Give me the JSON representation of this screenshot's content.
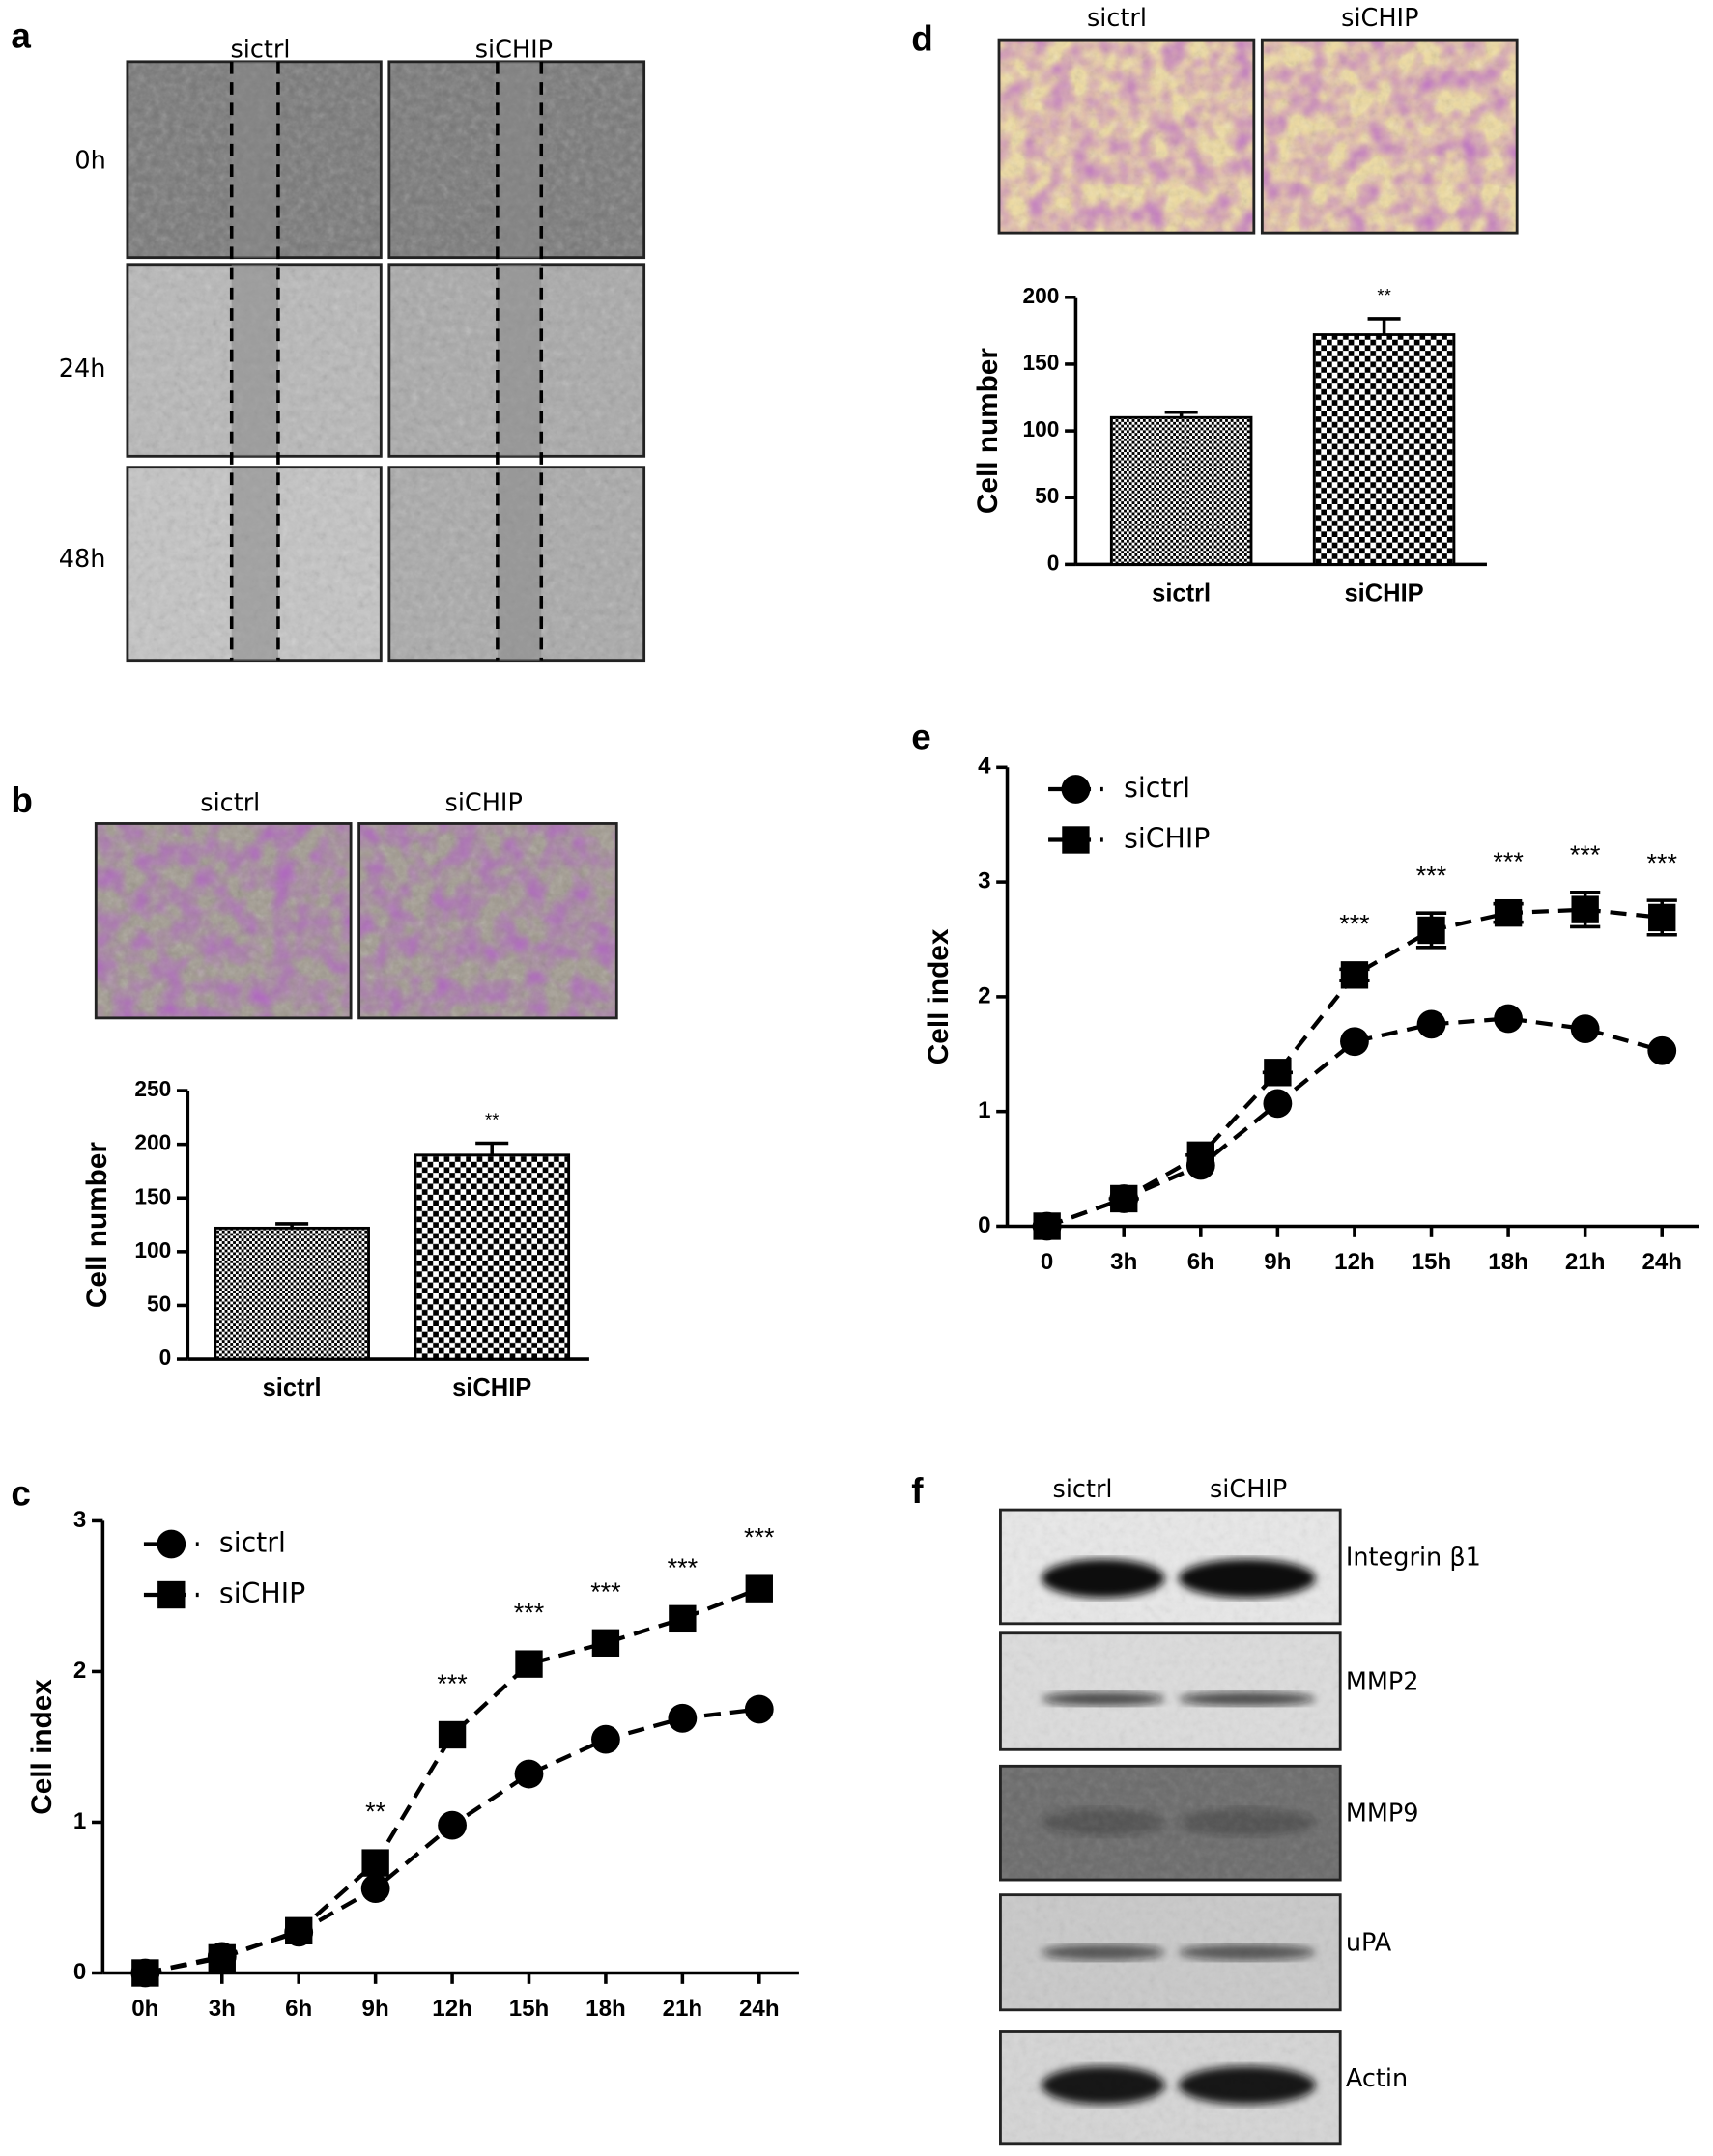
{
  "panel_labels": [
    "a",
    "b",
    "c",
    "d",
    "e",
    "f"
  ],
  "panel_a": {
    "columns": [
      "sictrl",
      "siCHIP"
    ],
    "rows": [
      "0h",
      "24h",
      "48h"
    ]
  },
  "panel_b": {
    "columns": [
      "sictrl",
      "siCHIP"
    ]
  },
  "panel_d": {
    "columns": [
      "sictrl",
      "siCHIP"
    ]
  },
  "panel_f": {
    "columns": [
      "sictrl",
      "siCHIP"
    ],
    "bands": [
      "Integrin β1",
      "MMP2",
      "MMP9",
      "uPA",
      "Actin"
    ]
  },
  "chart_data": [
    {
      "type": "bar",
      "y_label": "Cell number",
      "categories": [
        "sictrl",
        "siCHIP"
      ],
      "values": [
        122,
        190
      ],
      "errors": [
        4,
        11
      ],
      "color": "#000000",
      "ylim": [
        0,
        250
      ],
      "yticks": [
        0,
        50,
        100,
        150,
        200,
        250
      ],
      "annotations": [
        {
          "text": "**",
          "x": "siCHIP"
        }
      ]
    },
    {
      "type": "line",
      "y_label": "Cell index",
      "categories": [
        "0h",
        "3h",
        "6h",
        "9h",
        "12h",
        "15h",
        "18h",
        "21h",
        "24h"
      ],
      "series": [
        {
          "name": "sictrl",
          "color": "#000000",
          "marker": "circle",
          "values": [
            0,
            0.11,
            0.27,
            0.56,
            0.98,
            1.32,
            1.55,
            1.69,
            1.75
          ]
        },
        {
          "name": "siCHIP",
          "color": "#000000",
          "marker": "square",
          "values": [
            0,
            0.1,
            0.28,
            0.73,
            1.58,
            2.05,
            2.19,
            2.35,
            2.55
          ]
        }
      ],
      "ylim": [
        0,
        3
      ],
      "yticks": [
        0,
        1,
        2,
        3
      ],
      "legend": "upper left",
      "annotations": [
        {
          "text": "**",
          "x": "9h"
        },
        {
          "text": "***",
          "x": "12h"
        },
        {
          "text": "***",
          "x": "15h"
        },
        {
          "text": "***",
          "x": "18h"
        },
        {
          "text": "***",
          "x": "21h"
        },
        {
          "text": "***",
          "x": "24h"
        }
      ]
    },
    {
      "type": "bar",
      "y_label": "Cell number",
      "categories": [
        "sictrl",
        "siCHIP"
      ],
      "values": [
        110,
        172
      ],
      "errors": [
        4,
        12
      ],
      "color": "#000000",
      "ylim": [
        0,
        200
      ],
      "yticks": [
        0,
        50,
        100,
        150,
        200
      ],
      "annotations": [
        {
          "text": "**",
          "x": "siCHIP"
        }
      ]
    },
    {
      "type": "line",
      "y_label": "Cell index",
      "categories": [
        "0",
        "3h",
        "6h",
        "9h",
        "12h",
        "15h",
        "18h",
        "21h",
        "24h"
      ],
      "series": [
        {
          "name": "sictrl",
          "color": "#000000",
          "marker": "circle",
          "values": [
            0,
            0.24,
            0.53,
            1.07,
            1.61,
            1.76,
            1.81,
            1.72,
            1.53
          ]
        },
        {
          "name": "siCHIP",
          "color": "#000000",
          "marker": "square",
          "values": [
            0,
            0.24,
            0.62,
            1.34,
            2.19,
            2.58,
            2.73,
            2.76,
            2.69
          ],
          "errors": [
            0,
            0,
            0,
            0,
            0.05,
            0.15,
            0.08,
            0.15,
            0.15
          ]
        }
      ],
      "ylim": [
        0,
        4
      ],
      "yticks": [
        0,
        1,
        2,
        3,
        4
      ],
      "legend": "upper left",
      "annotations": [
        {
          "text": "***",
          "x": "12h"
        },
        {
          "text": "***",
          "x": "15h"
        },
        {
          "text": "***",
          "x": "18h"
        },
        {
          "text": "***",
          "x": "21h"
        },
        {
          "text": "***",
          "x": "24h"
        }
      ]
    }
  ]
}
